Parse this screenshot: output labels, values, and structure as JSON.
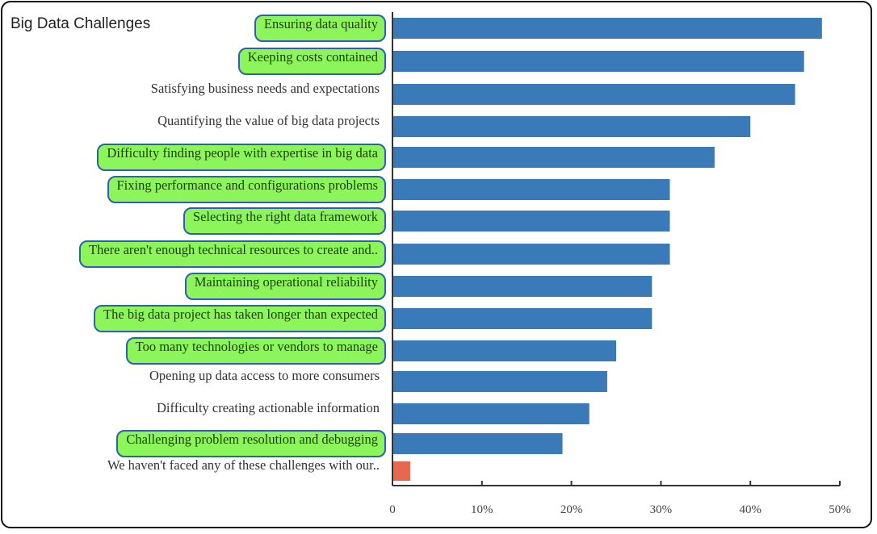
{
  "chart_data": {
    "type": "bar",
    "orientation": "horizontal",
    "title": "Big Data Challenges",
    "xlabel": "",
    "ylabel": "",
    "xlim": [
      0,
      50
    ],
    "x_ticks": [
      "0",
      "10%",
      "20%",
      "30%",
      "40%",
      "50%"
    ],
    "categories": [
      "Ensuring data quality",
      "Keeping costs contained",
      "Satisfying business needs and expectations",
      "Quantifying the value of big data projects",
      "Difficulty finding people with expertise in big data",
      "Fixing performance and configurations problems",
      "Selecting the right data framework",
      "There aren't enough technical resources to create and..",
      "Maintaining operational reliability",
      "The big data project has taken longer than expected",
      "Too many technologies or vendors to manage",
      "Opening up data access to more consumers",
      "Difficulty creating actionable information",
      "Challenging problem resolution and debugging",
      "We haven't faced any of these challenges with our.."
    ],
    "values": [
      48,
      46,
      45,
      40,
      36,
      31,
      31,
      31,
      29,
      29,
      25,
      24,
      22,
      19,
      2
    ],
    "highlighted": [
      true,
      true,
      false,
      false,
      true,
      true,
      true,
      true,
      true,
      true,
      true,
      false,
      false,
      true,
      false
    ],
    "bar_colors": [
      "#3a7ab8",
      "#3a7ab8",
      "#3a7ab8",
      "#3a7ab8",
      "#3a7ab8",
      "#3a7ab8",
      "#3a7ab8",
      "#3a7ab8",
      "#3a7ab8",
      "#3a7ab8",
      "#3a7ab8",
      "#3a7ab8",
      "#3a7ab8",
      "#3a7ab8",
      "#e8674f"
    ],
    "highlight_color": "#8cf55a",
    "grid": false
  }
}
